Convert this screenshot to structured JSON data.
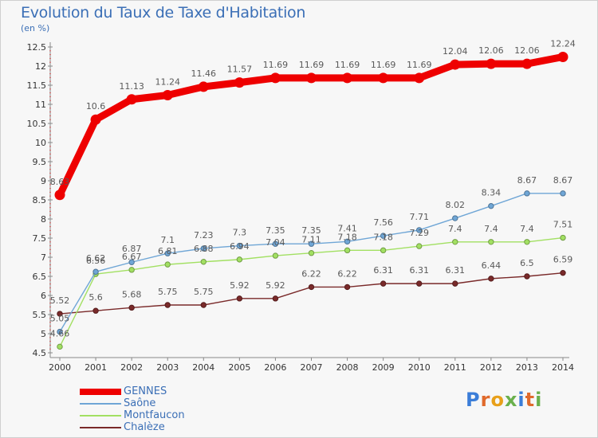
{
  "title": "Evolution du Taux de Taxe d'Habitation",
  "subtitle": "(en %)",
  "logo": {
    "letters": [
      "P",
      "r",
      "o",
      "x",
      "i",
      "t",
      "i"
    ],
    "colors": [
      "#3b7dd8",
      "#e06a2c",
      "#e8a01a",
      "#6ab04c",
      "#3b7dd8",
      "#e06a2c",
      "#6ab04c"
    ]
  },
  "chart_data": {
    "type": "line",
    "x": [
      "2000",
      "2001",
      "2002",
      "2003",
      "2004",
      "2005",
      "2006",
      "2007",
      "2008",
      "2009",
      "2010",
      "2011",
      "2012",
      "2013",
      "2014"
    ],
    "ylim": [
      4.5,
      12.5
    ],
    "yticks": [
      "4.5",
      "5",
      "5.5",
      "6",
      "6.5",
      "7",
      "7.5",
      "8",
      "8.5",
      "9",
      "9.5",
      "10",
      "10.5",
      "11",
      "11.5",
      "12",
      "12.5"
    ],
    "grid": false,
    "legend_position": "bottom-left",
    "series": [
      {
        "name": "GENNES",
        "color": "#ee0000",
        "values": [
          8.63,
          10.6,
          11.13,
          11.24,
          11.46,
          11.57,
          11.69,
          11.69,
          11.69,
          11.69,
          11.69,
          12.04,
          12.06,
          12.06,
          12.24
        ],
        "labels": [
          "8.63",
          "10.6",
          "11.13",
          "11.24",
          "11.46",
          "11.57",
          "11.69",
          "11.69",
          "11.69",
          "11.69",
          "11.69",
          "12.04",
          "12.06",
          "12.06",
          "12.24"
        ]
      },
      {
        "name": "Saône",
        "color": "#6fa6d6",
        "values": [
          5.05,
          6.62,
          6.87,
          7.1,
          7.23,
          7.3,
          7.35,
          7.35,
          7.41,
          7.56,
          7.71,
          8.02,
          8.34,
          8.67,
          8.67
        ],
        "labels": [
          "5.05",
          "6.62",
          "6.87",
          "7.1",
          "7.23",
          "7.3",
          "7.35",
          "7.35",
          "7.41",
          "7.56",
          "7.71",
          "8.02",
          "8.34",
          "8.67",
          "8.67"
        ]
      },
      {
        "name": "Montfaucon",
        "color": "#a2e062",
        "values": [
          4.66,
          6.56,
          6.67,
          6.81,
          6.88,
          6.94,
          7.04,
          7.11,
          7.18,
          7.18,
          7.29,
          7.4,
          7.4,
          7.4,
          7.51
        ],
        "labels": [
          "4.66",
          "6.56",
          "6.67",
          "6.81",
          "6.88",
          "6.94",
          "7.04",
          "7.11",
          "7.18",
          "7.18",
          "7.29",
          "7.4",
          "7.4",
          "7.4",
          "7.51"
        ]
      },
      {
        "name": "Chalèze",
        "color": "#7a2a2a",
        "values": [
          5.52,
          5.6,
          5.68,
          5.75,
          5.75,
          5.92,
          5.92,
          6.22,
          6.22,
          6.31,
          6.31,
          6.31,
          6.44,
          6.5,
          6.59
        ],
        "labels": [
          "5.52",
          "5.6",
          "5.68",
          "5.75",
          "5.75",
          "5.92",
          "5.92",
          "6.22",
          "6.22",
          "6.31",
          "6.31",
          "6.31",
          "6.44",
          "6.5",
          "6.59"
        ]
      }
    ]
  }
}
